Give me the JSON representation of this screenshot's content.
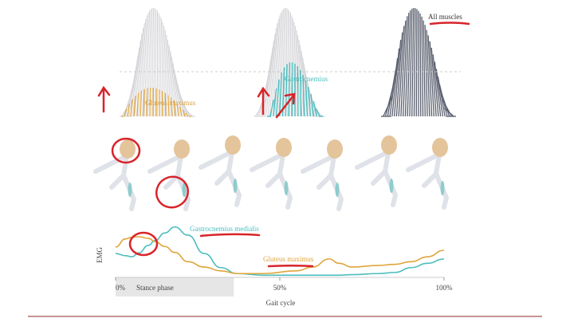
{
  "panels": [
    {
      "label": "Gluteus maximus"
    },
    {
      "label": "Gastrocnemius"
    },
    {
      "label": "All muscles"
    }
  ],
  "chart_data": {
    "type": "line",
    "ylabel": "EMG",
    "xlabel": "Gait cycle",
    "x": [
      0,
      3,
      5,
      7,
      10,
      12,
      15,
      18,
      22,
      27,
      32,
      37,
      45,
      55,
      60,
      65,
      68,
      72,
      80,
      85,
      90,
      95,
      100
    ],
    "series": [
      {
        "name": "Gastrocnemius medialis",
        "color": "#4bbdbd",
        "values": [
          0.44,
          0.4,
          0.38,
          0.45,
          0.59,
          0.68,
          0.82,
          0.93,
          0.78,
          0.44,
          0.18,
          0.07,
          0.04,
          0.04,
          0.04,
          0.04,
          0.04,
          0.05,
          0.07,
          0.09,
          0.18,
          0.26,
          0.34
        ]
      },
      {
        "name": "Gluteus maximus",
        "color": "#e0a53a",
        "values": [
          0.56,
          0.71,
          0.74,
          0.75,
          0.72,
          0.66,
          0.57,
          0.46,
          0.29,
          0.19,
          0.12,
          0.07,
          0.07,
          0.12,
          0.19,
          0.34,
          0.26,
          0.19,
          0.22,
          0.24,
          0.29,
          0.38,
          0.5
        ]
      }
    ],
    "xlim": [
      0,
      100
    ],
    "ylim": [
      0,
      1
    ],
    "xticks": [
      {
        "value": 0,
        "label": "0%"
      },
      {
        "value": 50,
        "label": "50%"
      },
      {
        "value": 100,
        "label": "100%"
      }
    ],
    "stance_phase": {
      "label": "Stance phase",
      "range": [
        0,
        36
      ]
    }
  }
}
